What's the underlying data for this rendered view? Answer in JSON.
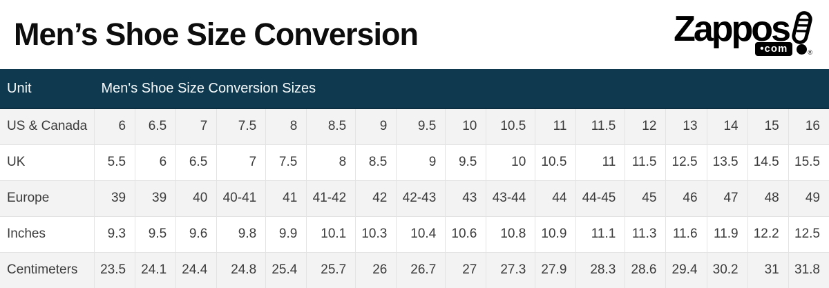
{
  "page": {
    "title": "Men’s Shoe Size Conversion"
  },
  "logo": {
    "brand": "Zappos",
    "shoe_icon": "shoe-exclamation-icon",
    "tld_label": "•com",
    "registered_mark": "®"
  },
  "colors": {
    "header_bg": "#0e394f",
    "header_text": "#f7fafc",
    "row_alt_bg": "#f3f3f3",
    "row_bg": "#ffffff",
    "cell_border": "#e3e3e3",
    "cell_text": "#3b3b3b",
    "title_text": "#0d0d0d",
    "logo_black": "#000000"
  },
  "table_header": {
    "unit_label": "Unit",
    "sizes_label": "Men's Shoe Size Conversion Sizes"
  },
  "chart_data": {
    "type": "table",
    "title": "Men’s Shoe Size Conversion",
    "header": [
      "Unit",
      "Men's Shoe Size Conversion Sizes"
    ],
    "columns_per_row": 17,
    "rows": [
      {
        "label": "US & Canada",
        "values": [
          "6",
          "6.5",
          "7",
          "7.5",
          "8",
          "8.5",
          "9",
          "9.5",
          "10",
          "10.5",
          "11",
          "11.5",
          "12",
          "13",
          "14",
          "15",
          "16"
        ]
      },
      {
        "label": "UK",
        "values": [
          "5.5",
          "6",
          "6.5",
          "7",
          "7.5",
          "8",
          "8.5",
          "9",
          "9.5",
          "10",
          "10.5",
          "11",
          "11.5",
          "12.5",
          "13.5",
          "14.5",
          "15.5"
        ]
      },
      {
        "label": "Europe",
        "values": [
          "39",
          "39",
          "40",
          "40-41",
          "41",
          "41-42",
          "42",
          "42-43",
          "43",
          "43-44",
          "44",
          "44-45",
          "45",
          "46",
          "47",
          "48",
          "49"
        ]
      },
      {
        "label": "Inches",
        "values": [
          "9.3",
          "9.5",
          "9.6",
          "9.8",
          "9.9",
          "10.1",
          "10.3",
          "10.4",
          "10.6",
          "10.8",
          "10.9",
          "11.1",
          "11.3",
          "11.6",
          "11.9",
          "12.2",
          "12.5"
        ]
      },
      {
        "label": "Centimeters",
        "values": [
          "23.5",
          "24.1",
          "24.4",
          "24.8",
          "25.4",
          "25.7",
          "26",
          "26.7",
          "27",
          "27.3",
          "27.9",
          "28.3",
          "28.6",
          "29.4",
          "30.2",
          "31",
          "31.8"
        ]
      }
    ]
  }
}
